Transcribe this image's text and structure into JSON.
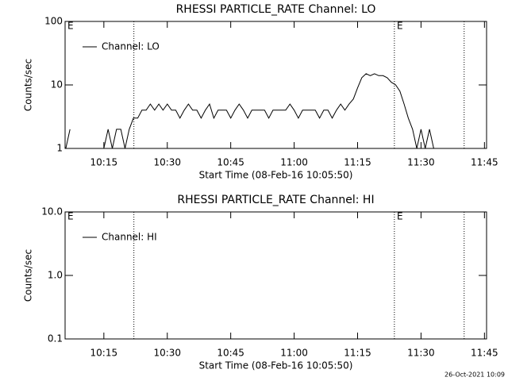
{
  "chart_data": [
    {
      "type": "line",
      "title": "RHESSI PARTICLE_RATE Channel: LO",
      "x_label": "Start Time (08-Feb-16 10:05:50)",
      "y_label": "Counts/sec",
      "log_y": true,
      "xlim": [
        605.833,
        705.5
      ],
      "ylim": [
        1,
        100
      ],
      "xticks": [
        {
          "value": 615,
          "label": "10:15"
        },
        {
          "value": 630,
          "label": "10:30"
        },
        {
          "value": 645,
          "label": "10:45"
        },
        {
          "value": 660,
          "label": "11:00"
        },
        {
          "value": 675,
          "label": "11:15"
        },
        {
          "value": 690,
          "label": "11:30"
        },
        {
          "value": 705,
          "label": "11:45"
        }
      ],
      "yticks": [
        1,
        10,
        100
      ],
      "vlines": [
        622.1,
        683.7,
        700.2
      ],
      "annotations": [
        {
          "text": "E",
          "x": 606.4
        },
        {
          "text": "E",
          "x": 684.3
        }
      ],
      "x": [
        606,
        607,
        608,
        609,
        610,
        611,
        612,
        613,
        614,
        615,
        616,
        617,
        618,
        619,
        620,
        621,
        622,
        623,
        624,
        625,
        626,
        627,
        628,
        629,
        630,
        631,
        632,
        633,
        634,
        635,
        636,
        637,
        638,
        639,
        640,
        641,
        642,
        643,
        644,
        645,
        646,
        647,
        648,
        649,
        650,
        651,
        652,
        653,
        654,
        655,
        656,
        657,
        658,
        659,
        660,
        661,
        662,
        663,
        664,
        665,
        666,
        667,
        668,
        669,
        670,
        671,
        672,
        673,
        674,
        675,
        676,
        677,
        678,
        679,
        680,
        681,
        682,
        683,
        684,
        685,
        686,
        687,
        688,
        689,
        690,
        691,
        692,
        693,
        694,
        695,
        696,
        697,
        698,
        699,
        700,
        701,
        702,
        703,
        704
      ],
      "series": [
        {
          "name": "Channel: LO",
          "color": "#000000",
          "values": [
            1,
            2,
            null,
            null,
            null,
            null,
            null,
            null,
            null,
            1,
            2,
            1,
            2,
            2,
            1,
            2,
            3,
            3,
            4,
            4,
            5,
            4,
            5,
            4,
            5,
            4,
            4,
            3,
            4,
            5,
            4,
            4,
            3,
            4,
            5,
            3,
            4,
            4,
            4,
            3,
            4,
            5,
            4,
            3,
            4,
            4,
            4,
            4,
            3,
            4,
            4,
            4,
            4,
            5,
            4,
            3,
            4,
            4,
            4,
            4,
            3,
            4,
            4,
            3,
            4,
            5,
            4,
            5,
            6,
            9,
            13,
            15,
            14,
            15,
            14,
            14,
            13,
            11,
            10,
            8,
            5,
            3,
            2,
            1,
            2,
            1,
            2,
            1,
            null,
            null,
            null,
            null,
            null,
            null,
            null,
            null,
            null,
            null,
            null
          ]
        }
      ]
    },
    {
      "type": "line",
      "title": "RHESSI PARTICLE_RATE Channel: HI",
      "x_label": "Start Time (08-Feb-16 10:05:50)",
      "y_label": "Counts/sec",
      "log_y": true,
      "xlim": [
        605.833,
        705.5
      ],
      "ylim": [
        0.1,
        10
      ],
      "xticks": [
        {
          "value": 615,
          "label": "10:15"
        },
        {
          "value": 630,
          "label": "10:30"
        },
        {
          "value": 645,
          "label": "10:45"
        },
        {
          "value": 660,
          "label": "11:00"
        },
        {
          "value": 675,
          "label": "11:15"
        },
        {
          "value": 690,
          "label": "11:30"
        },
        {
          "value": 705,
          "label": "11:45"
        }
      ],
      "yticks": [
        0.1,
        {
          "value": 1,
          "label": "1.0"
        },
        {
          "value": 10,
          "label": "10.0"
        }
      ],
      "vlines": [
        622.1,
        683.7,
        700.2
      ],
      "annotations": [
        {
          "text": "E",
          "x": 606.4
        },
        {
          "text": "E",
          "x": 684.3
        }
      ],
      "x": [],
      "series": [
        {
          "name": "Channel: HI",
          "color": "#000000",
          "values": []
        }
      ]
    }
  ],
  "footer": "26-Oct-2021 10:09"
}
